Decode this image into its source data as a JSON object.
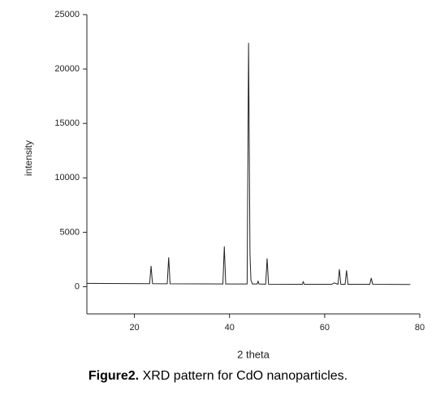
{
  "chart_data": {
    "type": "line",
    "xlabel": "2 theta",
    "ylabel": "intensity",
    "x": [
      10,
      23.2,
      23.5,
      23.8,
      26.9,
      27.2,
      27.5,
      38.6,
      38.9,
      39.2,
      43.7,
      44.0,
      44.3,
      44.5,
      44.8,
      45.8,
      46.0,
      46.2,
      47.6,
      47.9,
      48.2,
      55.3,
      55.5,
      55.7,
      61.5,
      62.0,
      62.8,
      63.1,
      63.4,
      64.3,
      64.6,
      64.9,
      69.5,
      69.8,
      70.1,
      78
    ],
    "series": [
      {
        "color": "#222222",
        "values": [
          300,
          280,
          1900,
          280,
          270,
          2700,
          270,
          250,
          3700,
          250,
          250,
          22400,
          3000,
          600,
          250,
          250,
          500,
          250,
          230,
          2600,
          230,
          220,
          450,
          220,
          220,
          350,
          220,
          1600,
          220,
          220,
          1500,
          220,
          220,
          800,
          220,
          200
        ]
      }
    ],
    "xlim": [
      10,
      80
    ],
    "xticks": [
      20,
      40,
      60,
      80
    ],
    "ylim": [
      -2500,
      25000
    ],
    "yticks": [
      0,
      5000,
      10000,
      15000,
      20000,
      25000
    ],
    "grid": false
  },
  "caption": {
    "label": "Figure2.",
    "text": "XRD pattern for CdO nanoparticles."
  }
}
